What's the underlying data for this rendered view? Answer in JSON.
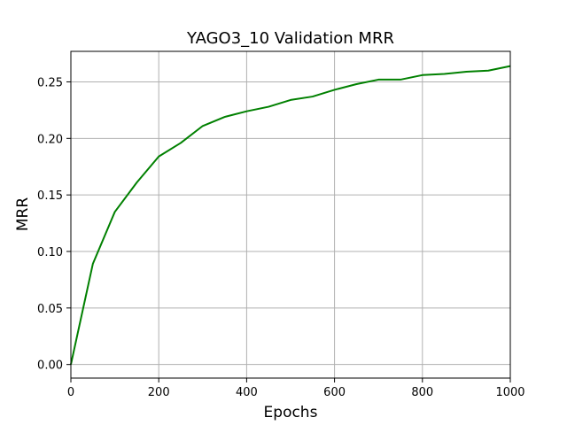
{
  "chart_data": {
    "type": "line",
    "title": "YAGO3_10 Validation MRR",
    "xlabel": "Epochs",
    "ylabel": "MRR",
    "xlim": [
      0,
      1000
    ],
    "ylim": [
      -0.012,
      0.277
    ],
    "x_ticks": [
      0,
      200,
      400,
      600,
      800,
      1000
    ],
    "y_ticks": [
      0.0,
      0.05,
      0.1,
      0.15,
      0.2,
      0.25
    ],
    "x_tick_labels": [
      "0",
      "200",
      "400",
      "600",
      "800",
      "1000"
    ],
    "y_tick_labels": [
      "0.00",
      "0.05",
      "0.10",
      "0.15",
      "0.20",
      "0.25"
    ],
    "grid": true,
    "series": [
      {
        "color": "#008000",
        "x": [
          0,
          50,
          100,
          150,
          200,
          250,
          300,
          350,
          400,
          450,
          500,
          550,
          600,
          650,
          700,
          750,
          800,
          850,
          900,
          950,
          1000
        ],
        "y": [
          0.0,
          0.089,
          0.135,
          0.161,
          0.184,
          0.196,
          0.211,
          0.219,
          0.224,
          0.228,
          0.234,
          0.237,
          0.243,
          0.248,
          0.252,
          0.252,
          0.256,
          0.257,
          0.259,
          0.26,
          0.264
        ]
      }
    ]
  }
}
